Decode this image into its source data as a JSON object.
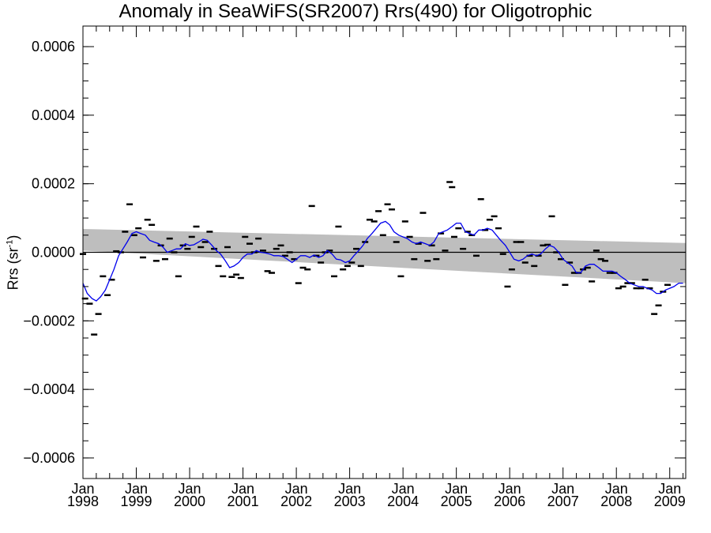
{
  "chart_data": {
    "type": "scatter",
    "title": "Anomaly in SeaWiFS(SR2007) Rrs(490) for Oligotrophic",
    "ylabel_main": "Rrs (sr",
    "ylabel_sup": "-1",
    "ylabel_end": ")",
    "ylim": [
      -0.00066,
      0.00066
    ],
    "xlim": [
      1998.0,
      2009.3
    ],
    "y_ticks": [
      -0.0006,
      -0.0004,
      -0.0002,
      0.0,
      0.0002,
      0.0004,
      0.0006
    ],
    "y_tick_labels": [
      "−0.0006",
      "−0.0004",
      "−0.0002",
      "0.0000",
      "0.0002",
      "0.0004",
      "0.0006"
    ],
    "x_ticks": [
      1998,
      1999,
      2000,
      2001,
      2002,
      2003,
      2004,
      2005,
      2006,
      2007,
      2008,
      2009
    ],
    "x_tick_month": "Jan",
    "x_tick_years": [
      "1998",
      "1999",
      "2000",
      "2001",
      "2002",
      "2003",
      "2004",
      "2005",
      "2006",
      "2007",
      "2008",
      "2009"
    ],
    "zero_line": 0.0,
    "series": [
      {
        "kind": "monthly-anomaly-markers",
        "color": "#000000",
        "points": [
          [
            1998.0,
            -5e-06
          ],
          [
            1998.04,
            -0.000135
          ],
          [
            1998.125,
            -0.00015
          ],
          [
            1998.21,
            -0.00024
          ],
          [
            1998.29,
            -0.00018
          ],
          [
            1998.375,
            -7e-05
          ],
          [
            1998.46,
            -0.000125
          ],
          [
            1998.54,
            -8e-05
          ],
          [
            1998.625,
            3e-06
          ],
          [
            1998.71,
            0.0
          ],
          [
            1998.79,
            6e-05
          ],
          [
            1998.875,
            0.00014
          ],
          [
            1998.96,
            5e-05
          ],
          [
            1999.04,
            7e-05
          ],
          [
            1999.125,
            -1.5e-05
          ],
          [
            1999.21,
            9.5e-05
          ],
          [
            1999.29,
            8e-05
          ],
          [
            1999.375,
            -2.5e-05
          ],
          [
            1999.46,
            2e-05
          ],
          [
            1999.54,
            -2e-05
          ],
          [
            1999.625,
            4e-05
          ],
          [
            1999.71,
            0.0
          ],
          [
            1999.79,
            -7e-05
          ],
          [
            1999.875,
            2e-05
          ],
          [
            1999.96,
            1e-05
          ],
          [
            2000.04,
            4.5e-05
          ],
          [
            2000.125,
            7.5e-05
          ],
          [
            2000.21,
            1.5e-05
          ],
          [
            2000.29,
            3e-05
          ],
          [
            2000.375,
            6e-05
          ],
          [
            2000.46,
            1e-05
          ],
          [
            2000.54,
            -4e-05
          ],
          [
            2000.625,
            -7e-05
          ],
          [
            2000.71,
            1.5e-05
          ],
          [
            2000.79,
            -7.2e-05
          ],
          [
            2000.875,
            -6.5e-05
          ],
          [
            2000.96,
            -7.5e-05
          ],
          [
            2001.04,
            4.5e-05
          ],
          [
            2001.125,
            2.5e-05
          ],
          [
            2001.21,
            0.0
          ],
          [
            2001.29,
            4e-05
          ],
          [
            2001.375,
            5e-06
          ],
          [
            2001.46,
            -5.5e-05
          ],
          [
            2001.54,
            -6e-05
          ],
          [
            2001.625,
            1e-05
          ],
          [
            2001.71,
            2e-05
          ],
          [
            2001.79,
            -1e-05
          ],
          [
            2001.875,
            0.0
          ],
          [
            2001.96,
            -2e-05
          ],
          [
            2002.04,
            -9e-05
          ],
          [
            2002.125,
            -4.5e-05
          ],
          [
            2002.21,
            -5e-05
          ],
          [
            2002.29,
            0.000135
          ],
          [
            2002.375,
            -1e-05
          ],
          [
            2002.46,
            -3e-05
          ],
          [
            2002.54,
            0.0
          ],
          [
            2002.625,
            5e-06
          ],
          [
            2002.71,
            -7e-05
          ],
          [
            2002.79,
            7.5e-05
          ],
          [
            2002.875,
            -5e-05
          ],
          [
            2002.96,
            -4e-05
          ],
          [
            2003.04,
            -3e-05
          ],
          [
            2003.125,
            1e-05
          ],
          [
            2003.21,
            -4e-05
          ],
          [
            2003.29,
            3e-05
          ],
          [
            2003.375,
            9.5e-05
          ],
          [
            2003.46,
            9e-05
          ],
          [
            2003.54,
            0.00012
          ],
          [
            2003.625,
            5e-05
          ],
          [
            2003.71,
            0.00014
          ],
          [
            2003.79,
            0.000125
          ],
          [
            2003.875,
            3e-05
          ],
          [
            2003.96,
            -7e-05
          ],
          [
            2004.04,
            9e-05
          ],
          [
            2004.125,
            4.5e-05
          ],
          [
            2004.21,
            -2e-05
          ],
          [
            2004.29,
            2.5e-05
          ],
          [
            2004.375,
            0.000115
          ],
          [
            2004.46,
            -2.5e-05
          ],
          [
            2004.54,
            2e-05
          ],
          [
            2004.625,
            -2e-05
          ],
          [
            2004.71,
            5.5e-05
          ],
          [
            2004.79,
            5e-06
          ],
          [
            2004.875,
            0.000205
          ],
          [
            2004.92,
            0.00019
          ],
          [
            2004.96,
            4.5e-05
          ],
          [
            2005.04,
            7e-05
          ],
          [
            2005.125,
            1e-05
          ],
          [
            2005.21,
            6e-05
          ],
          [
            2005.29,
            5e-05
          ],
          [
            2005.375,
            -1e-05
          ],
          [
            2005.46,
            0.000155
          ],
          [
            2005.54,
            6.5e-05
          ],
          [
            2005.625,
            9.5e-05
          ],
          [
            2005.71,
            0.000105
          ],
          [
            2005.79,
            7e-05
          ],
          [
            2005.875,
            -5e-06
          ],
          [
            2005.96,
            -0.0001
          ],
          [
            2006.04,
            -5e-05
          ],
          [
            2006.125,
            3e-05
          ],
          [
            2006.21,
            3e-05
          ],
          [
            2006.29,
            -3e-05
          ],
          [
            2006.375,
            -1e-05
          ],
          [
            2006.46,
            -4e-05
          ],
          [
            2006.54,
            -1e-05
          ],
          [
            2006.625,
            2e-05
          ],
          [
            2006.71,
            2.2e-05
          ],
          [
            2006.79,
            0.000105
          ],
          [
            2006.875,
            0.0
          ],
          [
            2006.96,
            -2e-05
          ],
          [
            2007.04,
            -9.5e-05
          ],
          [
            2007.125,
            -3e-05
          ],
          [
            2007.21,
            -6e-05
          ],
          [
            2007.29,
            -6e-05
          ],
          [
            2007.375,
            -5e-05
          ],
          [
            2007.46,
            -4.5e-05
          ],
          [
            2007.54,
            -8.5e-05
          ],
          [
            2007.625,
            5e-06
          ],
          [
            2007.71,
            -2e-05
          ],
          [
            2007.79,
            -2.5e-05
          ],
          [
            2007.875,
            -6e-05
          ],
          [
            2007.96,
            -6e-05
          ],
          [
            2008.04,
            -0.000105
          ],
          [
            2008.125,
            -0.0001
          ],
          [
            2008.21,
            -9e-05
          ],
          [
            2008.29,
            -9e-05
          ],
          [
            2008.375,
            -0.000105
          ],
          [
            2008.46,
            -0.000105
          ],
          [
            2008.54,
            -8e-05
          ],
          [
            2008.625,
            -0.000105
          ],
          [
            2008.71,
            -0.00018
          ],
          [
            2008.79,
            -0.000155
          ],
          [
            2008.875,
            -0.000115
          ],
          [
            2008.96,
            -9.5e-05
          ]
        ]
      },
      {
        "kind": "running-mean",
        "color": "#0000ee",
        "points": [
          [
            1998.0,
            -9e-05
          ],
          [
            1998.08,
            -0.00012
          ],
          [
            1998.17,
            -0.000135
          ],
          [
            1998.25,
            -0.000142
          ],
          [
            1998.33,
            -0.00013
          ],
          [
            1998.42,
            -0.00011
          ],
          [
            1998.5,
            -8e-05
          ],
          [
            1998.58,
            -5e-05
          ],
          [
            1998.67,
            -1e-05
          ],
          [
            1998.75,
            1e-05
          ],
          [
            1998.83,
            3e-05
          ],
          [
            1998.92,
            5.5e-05
          ],
          [
            1999.0,
            6e-05
          ],
          [
            1999.08,
            5.5e-05
          ],
          [
            1999.17,
            5e-05
          ],
          [
            1999.25,
            3.5e-05
          ],
          [
            1999.33,
            3e-05
          ],
          [
            1999.42,
            2.5e-05
          ],
          [
            1999.5,
            1.5e-05
          ],
          [
            1999.58,
            0.0
          ],
          [
            1999.67,
            5e-06
          ],
          [
            1999.75,
            1e-05
          ],
          [
            1999.83,
            1e-05
          ],
          [
            1999.92,
            2.5e-05
          ],
          [
            2000.0,
            2e-05
          ],
          [
            2000.08,
            2.2e-05
          ],
          [
            2000.17,
            3e-05
          ],
          [
            2000.25,
            3.8e-05
          ],
          [
            2000.33,
            3.5e-05
          ],
          [
            2000.42,
            2e-05
          ],
          [
            2000.5,
            5e-06
          ],
          [
            2000.58,
            -5e-06
          ],
          [
            2000.67,
            -2.5e-05
          ],
          [
            2000.75,
            -4.5e-05
          ],
          [
            2000.83,
            -4e-05
          ],
          [
            2000.92,
            -3e-05
          ],
          [
            2001.0,
            -1.5e-05
          ],
          [
            2001.08,
            -5e-06
          ],
          [
            2001.17,
            -5e-06
          ],
          [
            2001.25,
            5e-06
          ],
          [
            2001.33,
            0.0
          ],
          [
            2001.42,
            -2e-06
          ],
          [
            2001.5,
            -5e-06
          ],
          [
            2001.58,
            -1e-05
          ],
          [
            2001.67,
            -1e-05
          ],
          [
            2001.75,
            -1.2e-05
          ],
          [
            2001.83,
            -2e-05
          ],
          [
            2001.92,
            -3e-05
          ],
          [
            2002.0,
            -2e-05
          ],
          [
            2002.08,
            -1e-05
          ],
          [
            2002.17,
            -1e-05
          ],
          [
            2002.25,
            -1.5e-05
          ],
          [
            2002.33,
            -8e-06
          ],
          [
            2002.42,
            -1.5e-05
          ],
          [
            2002.5,
            -1e-05
          ],
          [
            2002.58,
            5e-06
          ],
          [
            2002.67,
            -5e-06
          ],
          [
            2002.75,
            -2e-05
          ],
          [
            2002.83,
            -2.2e-05
          ],
          [
            2002.92,
            -3e-05
          ],
          [
            2003.0,
            -2.5e-05
          ],
          [
            2003.08,
            -1e-05
          ],
          [
            2003.17,
            5e-06
          ],
          [
            2003.25,
            2e-05
          ],
          [
            2003.33,
            4e-05
          ],
          [
            2003.42,
            5.5e-05
          ],
          [
            2003.5,
            7e-05
          ],
          [
            2003.58,
            8.5e-05
          ],
          [
            2003.67,
            9e-05
          ],
          [
            2003.75,
            8e-05
          ],
          [
            2003.83,
            6e-05
          ],
          [
            2003.92,
            5e-05
          ],
          [
            2004.0,
            4.5e-05
          ],
          [
            2004.08,
            4e-05
          ],
          [
            2004.17,
            3e-05
          ],
          [
            2004.25,
            2.5e-05
          ],
          [
            2004.33,
            3e-05
          ],
          [
            2004.42,
            2.5e-05
          ],
          [
            2004.5,
            2e-05
          ],
          [
            2004.58,
            3e-05
          ],
          [
            2004.67,
            5.5e-05
          ],
          [
            2004.75,
            6e-05
          ],
          [
            2004.83,
            6.5e-05
          ],
          [
            2004.92,
            7.5e-05
          ],
          [
            2005.0,
            8.5e-05
          ],
          [
            2005.08,
            8.5e-05
          ],
          [
            2005.17,
            6e-05
          ],
          [
            2005.25,
            5.5e-05
          ],
          [
            2005.33,
            5e-05
          ],
          [
            2005.42,
            6.5e-05
          ],
          [
            2005.5,
            6.5e-05
          ],
          [
            2005.58,
            7e-05
          ],
          [
            2005.67,
            6.5e-05
          ],
          [
            2005.75,
            5e-05
          ],
          [
            2005.83,
            3.5e-05
          ],
          [
            2005.92,
            2e-05
          ],
          [
            2006.0,
            0.0
          ],
          [
            2006.08,
            -2e-05
          ],
          [
            2006.17,
            -2.5e-05
          ],
          [
            2006.25,
            -2e-05
          ],
          [
            2006.33,
            -1e-05
          ],
          [
            2006.42,
            -5e-06
          ],
          [
            2006.5,
            -1e-05
          ],
          [
            2006.58,
            -5e-06
          ],
          [
            2006.67,
            1e-05
          ],
          [
            2006.75,
            2e-05
          ],
          [
            2006.83,
            1.5e-05
          ],
          [
            2006.92,
            0.0
          ],
          [
            2007.0,
            -2e-05
          ],
          [
            2007.08,
            -3e-05
          ],
          [
            2007.17,
            -4e-05
          ],
          [
            2007.25,
            -6e-05
          ],
          [
            2007.33,
            -6e-05
          ],
          [
            2007.42,
            -4e-05
          ],
          [
            2007.5,
            -3.5e-05
          ],
          [
            2007.58,
            -3.5e-05
          ],
          [
            2007.67,
            -4.5e-05
          ],
          [
            2007.75,
            -5.5e-05
          ],
          [
            2007.83,
            -5.5e-05
          ],
          [
            2007.92,
            -5.5e-05
          ],
          [
            2008.0,
            -6e-05
          ],
          [
            2008.08,
            -7e-05
          ],
          [
            2008.17,
            -8e-05
          ],
          [
            2008.25,
            -9e-05
          ],
          [
            2008.33,
            -9.5e-05
          ],
          [
            2008.42,
            -0.0001
          ],
          [
            2008.5,
            -0.0001
          ],
          [
            2008.58,
            -0.000105
          ],
          [
            2008.67,
            -0.00011
          ],
          [
            2008.75,
            -0.00012
          ],
          [
            2008.83,
            -0.00012
          ],
          [
            2008.92,
            -0.00011
          ],
          [
            2009.0,
            -0.000105
          ],
          [
            2009.08,
            -0.0001
          ],
          [
            2009.17,
            -9e-05
          ],
          [
            2009.25,
            -9e-05
          ]
        ]
      }
    ],
    "trend_band": {
      "color": "#bebebe",
      "x": [
        1998.0,
        2009.3
      ],
      "upper": [
        6.8e-05,
        2.7e-05
      ],
      "lower": [
        5e-06,
        -9e-05
      ]
    }
  }
}
